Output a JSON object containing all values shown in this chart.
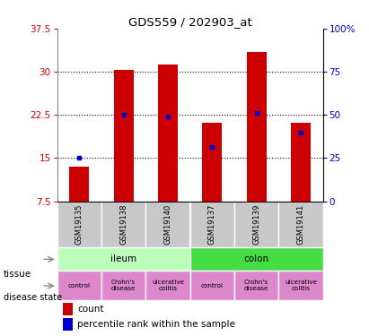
{
  "title": "GDS559 / 202903_at",
  "samples": [
    "GSM19135",
    "GSM19138",
    "GSM19140",
    "GSM19137",
    "GSM19139",
    "GSM19141"
  ],
  "count_values": [
    13.5,
    30.3,
    31.2,
    21.2,
    33.5,
    21.2
  ],
  "percentile_values": [
    15.0,
    22.5,
    22.2,
    17.0,
    22.8,
    19.5
  ],
  "ymin": 7.5,
  "ymax": 37.5,
  "yticks": [
    7.5,
    15.0,
    22.5,
    30.0,
    37.5
  ],
  "yticklabels_left": [
    "7.5",
    "15",
    "22.5",
    "30",
    "37.5"
  ],
  "yticklabels_right": [
    "0",
    "25",
    "50",
    "75",
    "100%"
  ],
  "bar_color": "#cc0000",
  "marker_color": "#0000cc",
  "tissue_ileum_color": "#bbffbb",
  "tissue_colon_color": "#44dd44",
  "disease_bg_color": "#dd88cc",
  "xlabel_color": "#cc0000",
  "ylabel_right_color": "#0000cc",
  "sample_bg_color": "#c8c8c8",
  "bar_width": 0.45
}
